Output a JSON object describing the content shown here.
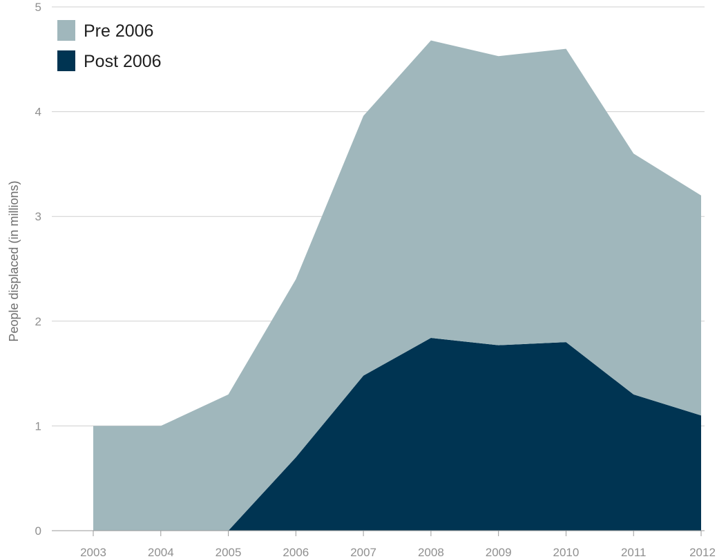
{
  "chart_data": {
    "type": "area",
    "stacked": true,
    "x": [
      "2003",
      "2004",
      "2005",
      "2006",
      "2007",
      "2008",
      "2009",
      "2010",
      "2011",
      "2012"
    ],
    "series": [
      {
        "name": "Post 2006",
        "color": "#003452",
        "values": [
          0,
          0,
          0,
          0.7,
          1.48,
          1.84,
          1.77,
          1.8,
          1.3,
          1.1
        ]
      },
      {
        "name": "Pre 2006",
        "color": "#a0b7bc",
        "values": [
          1.0,
          1.0,
          1.3,
          1.7,
          2.48,
          2.84,
          2.76,
          2.8,
          2.3,
          2.1
        ]
      }
    ],
    "ylabel": "People displaced (in millions)",
    "xlabel": "",
    "ylim": [
      0,
      5
    ],
    "yticks": [
      0,
      1,
      2,
      3,
      4,
      5
    ],
    "grid": true,
    "legend_position": "top-left"
  }
}
